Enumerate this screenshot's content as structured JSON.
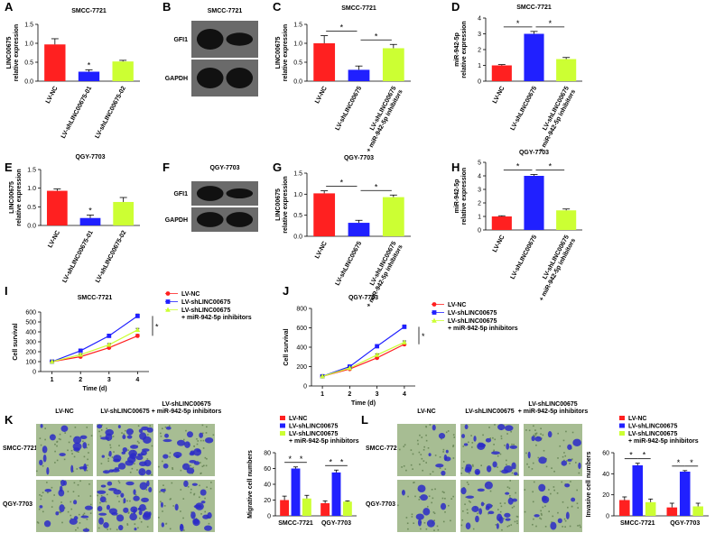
{
  "chart_data": [
    {
      "type": "bar",
      "panel": "A",
      "title": "SMCC-7721",
      "ylabel": [
        "LINC00675",
        "relative expression"
      ],
      "categories": [
        "LV-NC",
        "LV-shLINC00675-01",
        "LV-shLINC00675-02"
      ],
      "values": [
        0.97,
        0.25,
        0.52
      ],
      "errors": [
        0.15,
        0.05,
        0.03
      ],
      "colors": [
        "#ff2020",
        "#2020ff",
        "#ccff33"
      ],
      "ylim": [
        0,
        1.5
      ],
      "yticks": [
        {
          "value": 0,
          "label": "0.0"
        },
        0.5,
        {
          "value": 1,
          "label": "1.0"
        },
        1.5
      ],
      "annotations": [
        {
          "category": 1,
          "text": "*"
        }
      ]
    },
    {
      "type": "bar",
      "panel": "C",
      "title": "SMCC-7721",
      "ylabel": [
        "LINC00675",
        "relative expression"
      ],
      "categories": [
        "LV-NC",
        "LV-shLINC00675",
        [
          "LV-shLINC00675",
          "+ miR-942-5p inhibitors"
        ]
      ],
      "values": [
        1.0,
        0.3,
        0.87
      ],
      "errors": [
        0.2,
        0.1,
        0.1
      ],
      "colors": [
        "#ff2020",
        "#2020ff",
        "#ccff33"
      ],
      "ylim": [
        0,
        1.5
      ],
      "yticks": [
        {
          "value": 0,
          "label": "0.0"
        },
        0.5,
        {
          "value": 1,
          "label": "1.0"
        },
        1.5
      ],
      "brackets": [
        {
          "from": 0,
          "to": 1,
          "text": "*"
        },
        {
          "from": 1,
          "to": 2,
          "text": "*"
        }
      ]
    },
    {
      "type": "bar",
      "panel": "D",
      "title": "SMCC-7721",
      "ylabel": [
        "miR-942-5p",
        "relative expression"
      ],
      "categories": [
        "LV-NC",
        "LV-shLINC00675",
        [
          "LV-shLINC00675",
          "+ miR-942-5p inhibitors"
        ]
      ],
      "values": [
        1.0,
        3.0,
        1.4
      ],
      "errors": [
        0.05,
        0.15,
        0.1
      ],
      "colors": [
        "#ff2020",
        "#2020ff",
        "#ccff33"
      ],
      "ylim": [
        0,
        4
      ],
      "yticks": [
        0,
        1,
        2,
        3,
        4
      ],
      "brackets": [
        {
          "from": 0,
          "to": 1,
          "text": "*"
        },
        {
          "from": 1,
          "to": 2,
          "text": "*"
        }
      ]
    },
    {
      "type": "bar",
      "panel": "E",
      "title": "QGY-7703",
      "ylabel": [
        "LINC00675",
        "relative expression"
      ],
      "categories": [
        "LV-NC",
        "LV-shLINC00675-01",
        "LV-shLINC00675-02"
      ],
      "values": [
        0.93,
        0.2,
        0.63
      ],
      "errors": [
        0.05,
        0.08,
        0.12
      ],
      "colors": [
        "#ff2020",
        "#2020ff",
        "#ccff33"
      ],
      "ylim": [
        0,
        1.5
      ],
      "yticks": [
        {
          "value": 0,
          "label": "0.0"
        },
        0.5,
        {
          "value": 1,
          "label": "1.0"
        },
        1.5
      ],
      "annotations": [
        {
          "category": 1,
          "text": "*"
        }
      ]
    },
    {
      "type": "bar",
      "panel": "G",
      "title": "QGY-7703",
      "ylabel": [
        "LINC00675",
        "relative expression"
      ],
      "categories": [
        "LV-NC",
        "LV-shLINC00675",
        [
          "LV-shLINC00675",
          "+ miR-942-5p inhibitors"
        ]
      ],
      "values": [
        1.02,
        0.32,
        0.93
      ],
      "errors": [
        0.06,
        0.06,
        0.05
      ],
      "colors": [
        "#ff2020",
        "#2020ff",
        "#ccff33"
      ],
      "ylim": [
        0,
        1.5
      ],
      "yticks": [
        {
          "value": 0,
          "label": "0.0"
        },
        0.5,
        {
          "value": 1,
          "label": "1.0"
        },
        1.5
      ],
      "brackets": [
        {
          "from": 0,
          "to": 1,
          "text": "*"
        },
        {
          "from": 1,
          "to": 2,
          "text": "*"
        }
      ]
    },
    {
      "type": "bar",
      "panel": "H",
      "title": "QGY-7703",
      "ylabel": [
        "miR-942-5p",
        "relative expression"
      ],
      "categories": [
        "LV-NC",
        "LV-shLINC00675",
        [
          "LV-shLINC00675",
          "+ miR-942-5p inhibitors"
        ]
      ],
      "values": [
        1.0,
        4.0,
        1.45
      ],
      "errors": [
        0.05,
        0.1,
        0.1
      ],
      "colors": [
        "#ff2020",
        "#2020ff",
        "#ccff33"
      ],
      "ylim": [
        0,
        5
      ],
      "yticks": [
        0,
        1,
        2,
        3,
        4,
        5
      ],
      "brackets": [
        {
          "from": 0,
          "to": 1,
          "text": "*"
        },
        {
          "from": 1,
          "to": 2,
          "text": "*"
        }
      ]
    },
    {
      "type": "line",
      "panel": "I",
      "title": "SMCC-7721",
      "ylabel": "Cell survival",
      "xlabel": "Time (d)",
      "x": [
        1,
        2,
        3,
        4
      ],
      "xlim": [
        0.6,
        4.4
      ],
      "xticks": [
        1,
        2,
        3,
        4
      ],
      "ylim": [
        0,
        600
      ],
      "yticks": [
        0,
        100,
        200,
        300,
        400,
        500,
        600
      ],
      "series": [
        {
          "name": "LV-NC",
          "color": "#ff2020",
          "marker": "circle",
          "values": [
            100,
            150,
            240,
            360
          ],
          "errors": [
            5,
            8,
            12,
            15
          ]
        },
        {
          "name": "LV-shLINC00675",
          "color": "#2020ff",
          "marker": "square",
          "values": [
            100,
            210,
            360,
            560
          ],
          "errors": [
            5,
            10,
            15,
            20
          ]
        },
        {
          "name": [
            "LV-shLINC00675",
            "+ miR-942-5p inhibitors"
          ],
          "color": "#ccff33",
          "marker": "triangle",
          "values": [
            100,
            170,
            270,
            420
          ],
          "errors": [
            5,
            8,
            12,
            15
          ]
        }
      ],
      "significance": "*"
    },
    {
      "type": "line",
      "panel": "J",
      "title": "QGY-7703",
      "ylabel": "Cell survival",
      "xlabel": "Time (d)",
      "x": [
        1,
        2,
        3,
        4
      ],
      "xlim": [
        0.6,
        4.4
      ],
      "xticks": [
        1,
        2,
        3,
        4
      ],
      "ylim": [
        0,
        800
      ],
      "yticks": [
        0,
        200,
        400,
        600,
        800
      ],
      "series": [
        {
          "name": "LV-NC",
          "color": "#ff2020",
          "marker": "circle",
          "values": [
            100,
            175,
            290,
            430
          ],
          "errors": [
            5,
            8,
            12,
            15
          ]
        },
        {
          "name": "LV-shLINC00675",
          "color": "#2020ff",
          "marker": "square",
          "values": [
            100,
            200,
            410,
            610
          ],
          "errors": [
            5,
            10,
            15,
            20
          ]
        },
        {
          "name": [
            "LV-shLINC00675",
            "+ miR-942-5p inhibitors"
          ],
          "color": "#ccff33",
          "marker": "triangle",
          "values": [
            100,
            185,
            320,
            450
          ],
          "errors": [
            5,
            8,
            12,
            15
          ]
        }
      ],
      "significance": "*"
    },
    {
      "type": "grouped_bar",
      "ylabel": "Migrative cell numbers",
      "categories": [
        "SMCC-7721",
        "QGY-7703"
      ],
      "series": [
        {
          "name": "LV-NC",
          "color": "#ff2020",
          "values": [
            20,
            16
          ],
          "errors": [
            5,
            3
          ]
        },
        {
          "name": "LV-shLINC00675",
          "color": "#2020ff",
          "values": [
            60,
            55
          ],
          "errors": [
            2,
            3
          ]
        },
        {
          "name": [
            "LV-shLINC00675",
            "+ miR-942-5p inhibitors"
          ],
          "color": "#ccff33",
          "values": [
            22,
            18
          ],
          "errors": [
            4,
            1
          ]
        }
      ],
      "ylim": [
        0,
        80
      ],
      "yticks": [
        0,
        20,
        40,
        60,
        80
      ],
      "brackets": [
        {
          "group": 0,
          "from": 0,
          "to": 1,
          "text": "*"
        },
        {
          "group": 0,
          "from": 1,
          "to": 2,
          "text": "*"
        },
        {
          "group": 1,
          "from": 0,
          "to": 1,
          "text": "*"
        },
        {
          "group": 1,
          "from": 1,
          "to": 2,
          "text": "*"
        }
      ]
    },
    {
      "type": "grouped_bar",
      "ylabel": "Invasive cell numbers",
      "categories": [
        "SMCC-7721",
        "QGY-7703"
      ],
      "series": [
        {
          "name": "LV-NC",
          "color": "#ff2020",
          "values": [
            15,
            8
          ],
          "errors": [
            3,
            4
          ]
        },
        {
          "name": "LV-shLINC00675",
          "color": "#2020ff",
          "values": [
            48,
            42
          ],
          "errors": [
            2,
            1
          ]
        },
        {
          "name": [
            "LV-shLINC00675",
            "+ miR-942-5p inhibitors"
          ],
          "color": "#ccff33",
          "values": [
            13,
            9
          ],
          "errors": [
            3,
            3
          ]
        }
      ],
      "ylim": [
        0,
        60
      ],
      "yticks": [
        0,
        20,
        40,
        60
      ],
      "brackets": [
        {
          "group": 0,
          "from": 0,
          "to": 1,
          "text": "*"
        },
        {
          "group": 0,
          "from": 1,
          "to": 2,
          "text": "*"
        },
        {
          "group": 1,
          "from": 0,
          "to": 1,
          "text": "*"
        },
        {
          "group": 1,
          "from": 1,
          "to": 2,
          "text": "*"
        }
      ]
    }
  ],
  "blots": [
    {
      "panel": "B",
      "title": "SMCC-7721",
      "bands": [
        "GFI1",
        "GAPDH"
      ]
    },
    {
      "panel": "F",
      "title": "QGY-7703",
      "bands": [
        "GFI1",
        "GAPDH"
      ]
    }
  ],
  "micrographs": [
    {
      "panel": "K",
      "columns": [
        "LV-NC",
        "LV-shLINC00675",
        [
          "LV-shLINC00675",
          "+ miR-942-5p inhibitors"
        ]
      ],
      "rows": [
        "SMCC-7721",
        "QGY-7703"
      ]
    },
    {
      "panel": "L",
      "columns": [
        "LV-NC",
        "LV-shLINC00675",
        [
          "LV-shLINC00675",
          "+ miR-942-5p inhibitors"
        ]
      ],
      "rows": [
        "SMCC-7721",
        "QGY-7703"
      ]
    }
  ]
}
